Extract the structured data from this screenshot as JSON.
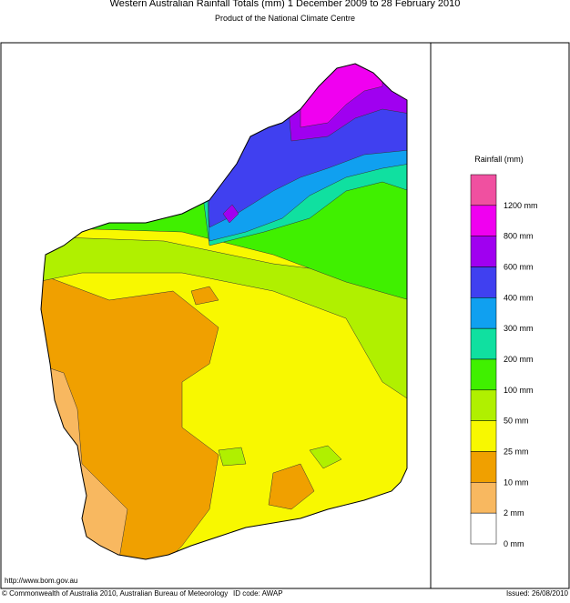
{
  "header": {
    "title": "Western Australian Rainfall Totals (mm) 1 December 2009 to 28 February 2010",
    "subtitle": "Product of the National Climate Centre"
  },
  "legend": {
    "title": "Rainfall (mm)",
    "items": [
      {
        "label": "1200 mm",
        "color": "#f050a0"
      },
      {
        "label": "800 mm",
        "color": "#f000f0"
      },
      {
        "label": "600 mm",
        "color": "#a000f0"
      },
      {
        "label": "400 mm",
        "color": "#4040f0"
      },
      {
        "label": "300 mm",
        "color": "#10a0f0"
      },
      {
        "label": "200 mm",
        "color": "#10e0a0"
      },
      {
        "label": "100 mm",
        "color": "#40f000"
      },
      {
        "label": "50 mm",
        "color": "#b0f000"
      },
      {
        "label": "25 mm",
        "color": "#f8f800"
      },
      {
        "label": "10 mm",
        "color": "#f0a000"
      },
      {
        "label": "2 mm",
        "color": "#f8b860"
      },
      {
        "label": "0 mm",
        "color": "#ffffff"
      }
    ]
  },
  "footer": {
    "url": "http://www.bom.gov.au",
    "copyright": "© Commonwealth of Australia 2010, Australian Bureau of Meteorology",
    "id_code": "ID code: AWAP",
    "issued": "Issued: 26/08/2010"
  }
}
